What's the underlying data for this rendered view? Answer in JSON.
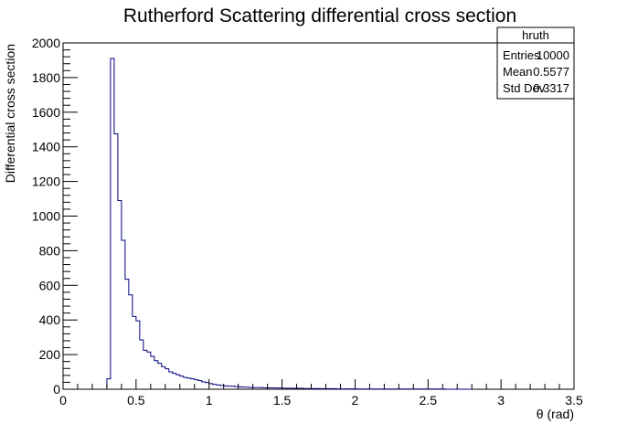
{
  "colors": {
    "histogram_line": "#000080",
    "axis": "#000000",
    "background": "#ffffff"
  },
  "chart_data": {
    "type": "histogram",
    "title": "Rutherford Scattering differential cross section",
    "xlabel": "θ (rad)",
    "ylabel": "Differential cross section",
    "xlim": [
      0,
      3.5
    ],
    "ylim": [
      0,
      2000
    ],
    "grid": false,
    "x_ticks": [
      "0",
      "0.5",
      "1",
      "1.5",
      "2",
      "2.5",
      "3",
      "3.5"
    ],
    "y_ticks": [
      "0",
      "200",
      "400",
      "600",
      "800",
      "1000",
      "1200",
      "1400",
      "1600",
      "1800",
      "2000"
    ],
    "bin_width": 0.025,
    "bins_start": 0.3,
    "counts": [
      60,
      1910,
      1475,
      1090,
      860,
      635,
      545,
      420,
      395,
      285,
      225,
      215,
      190,
      165,
      150,
      130,
      118,
      100,
      92,
      84,
      76,
      68,
      64,
      60,
      55,
      50,
      42,
      38,
      32,
      28,
      25,
      22,
      20,
      18,
      18,
      15,
      14,
      12,
      12,
      10,
      10,
      10,
      9,
      8,
      8,
      8,
      7,
      7,
      6,
      6,
      6,
      5,
      5,
      5,
      4,
      4,
      4,
      4,
      3,
      3,
      3,
      3,
      3,
      2,
      2,
      2,
      2,
      2,
      2,
      1,
      1,
      1,
      1,
      1,
      1,
      1,
      1,
      1,
      1,
      1,
      1,
      1,
      1,
      1,
      1,
      1,
      1,
      1,
      1,
      1,
      1,
      1,
      1,
      0,
      0,
      0,
      0,
      0,
      0,
      0
    ],
    "stats_box": {
      "name": "hruth",
      "rows": [
        {
          "label": "Entries",
          "value": "10000"
        },
        {
          "label": "Mean",
          "value": "0.5577"
        },
        {
          "label": "Std Dev",
          "value": "0.3317"
        }
      ]
    }
  }
}
